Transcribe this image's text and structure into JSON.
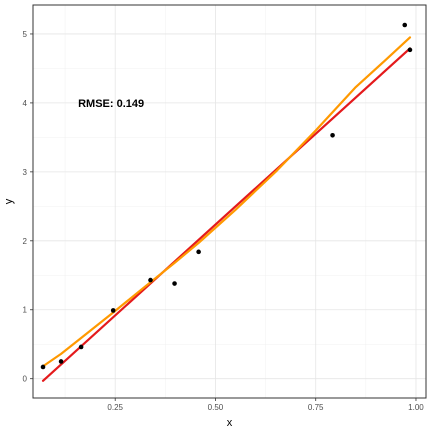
{
  "chart_data": {
    "type": "scatter",
    "title": "",
    "xlabel": "x",
    "ylabel": "y",
    "xlim": [
      0.045,
      1.025
    ],
    "ylim": [
      -0.28,
      5.42
    ],
    "x_ticks": [
      0.25,
      0.5,
      0.75,
      1.0
    ],
    "x_tick_labels": [
      "0.25",
      "0.50",
      "0.75",
      "1.00"
    ],
    "y_ticks": [
      0,
      1,
      2,
      3,
      4,
      5
    ],
    "y_tick_labels": [
      "0",
      "1",
      "2",
      "3",
      "4",
      "5"
    ],
    "grid": true,
    "points": {
      "x": [
        0.07,
        0.115,
        0.165,
        0.245,
        0.338,
        0.398,
        0.458,
        0.792,
        0.972,
        0.985
      ],
      "y": [
        0.17,
        0.25,
        0.46,
        0.99,
        1.43,
        1.38,
        1.84,
        3.53,
        5.13,
        4.77
      ],
      "color": "#000000"
    },
    "fits": [
      {
        "kind": "linear",
        "color": "#e41a1c",
        "x": [
          0.07,
          0.985
        ],
        "y": [
          -0.03,
          4.79
        ]
      },
      {
        "kind": "quadratic",
        "color": "#ff9900",
        "x": [
          0.07,
          0.115,
          0.165,
          0.245,
          0.338,
          0.398,
          0.458,
          0.55,
          0.65,
          0.75,
          0.85,
          0.92,
          0.985
        ],
        "y": [
          0.18,
          0.36,
          0.59,
          0.96,
          1.4,
          1.68,
          1.97,
          2.45,
          3.0,
          3.6,
          4.23,
          4.6,
          4.95
        ]
      }
    ],
    "annotation": {
      "text": "RMSE: 0.149",
      "x": 0.165,
      "y": 4.0
    }
  }
}
